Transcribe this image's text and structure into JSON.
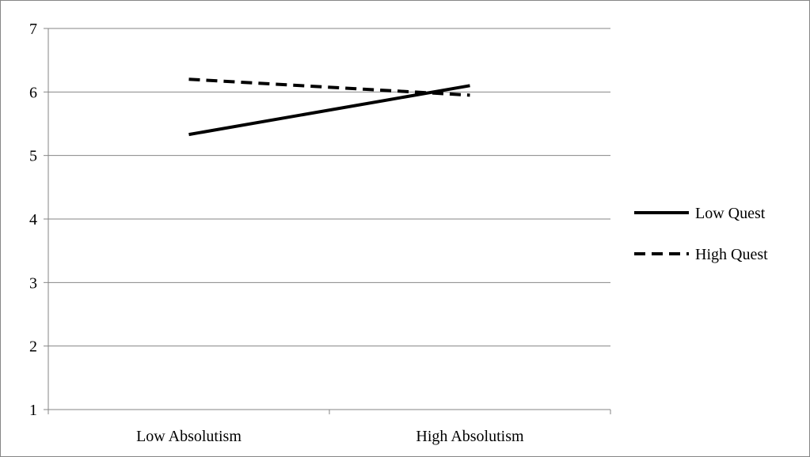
{
  "chart_data": {
    "type": "line",
    "title": "",
    "xlabel": "",
    "ylabel": "",
    "categories": [
      "Low Absolutism",
      "High Absolutism"
    ],
    "ylim": [
      1,
      7
    ],
    "yticks": [
      1,
      2,
      3,
      4,
      5,
      6,
      7
    ],
    "grid": true,
    "legend_position": "right",
    "series": [
      {
        "name": "Low Quest",
        "values": [
          5.33,
          6.1
        ],
        "line_style": "solid",
        "color": "#000000"
      },
      {
        "name": "High Quest",
        "values": [
          6.2,
          5.95
        ],
        "line_style": "dashed",
        "color": "#000000"
      }
    ]
  }
}
